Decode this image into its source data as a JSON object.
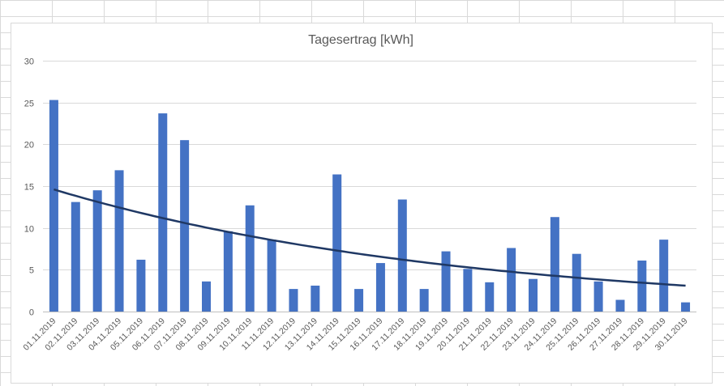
{
  "chart_data": {
    "type": "bar",
    "title": "Tagesertrag [kWh]",
    "xlabel": "",
    "ylabel": "",
    "ylim": [
      0,
      30
    ],
    "yticks": [
      0,
      5,
      10,
      15,
      20,
      25,
      30
    ],
    "grid": true,
    "legend": "none",
    "bar_color": "#4472c4",
    "trend_color": "#1f3864",
    "trendline": "exponential",
    "trend_start": 14.6,
    "trend_end": 3.1,
    "categories": [
      "01.11.2019",
      "02.11.2019",
      "03.11.2019",
      "04.11.2019",
      "05.11.2019",
      "06.11.2019",
      "07.11.2019",
      "08.11.2019",
      "09.11.2019",
      "10.11.2019",
      "11.11.2019",
      "12.11.2019",
      "13.11.2019",
      "14.11.2019",
      "15.11.2019",
      "16.11.2019",
      "17.11.2019",
      "18.11.2019",
      "19.11.2019",
      "20.11.2019",
      "21.11.2019",
      "22.11.2019",
      "23.11.2019",
      "24.11.2019",
      "25.11.2019",
      "26.11.2019",
      "27.11.2019",
      "28.11.2019",
      "29.11.2019",
      "30.11.2019"
    ],
    "values": [
      25.3,
      13.1,
      14.5,
      16.9,
      6.2,
      23.7,
      20.5,
      3.6,
      9.6,
      12.7,
      8.6,
      2.7,
      3.1,
      16.4,
      2.7,
      5.8,
      13.4,
      2.7,
      7.2,
      5.1,
      3.5,
      7.6,
      3.9,
      11.3,
      6.9,
      3.6,
      1.4,
      6.1,
      8.6,
      1.1
    ]
  }
}
